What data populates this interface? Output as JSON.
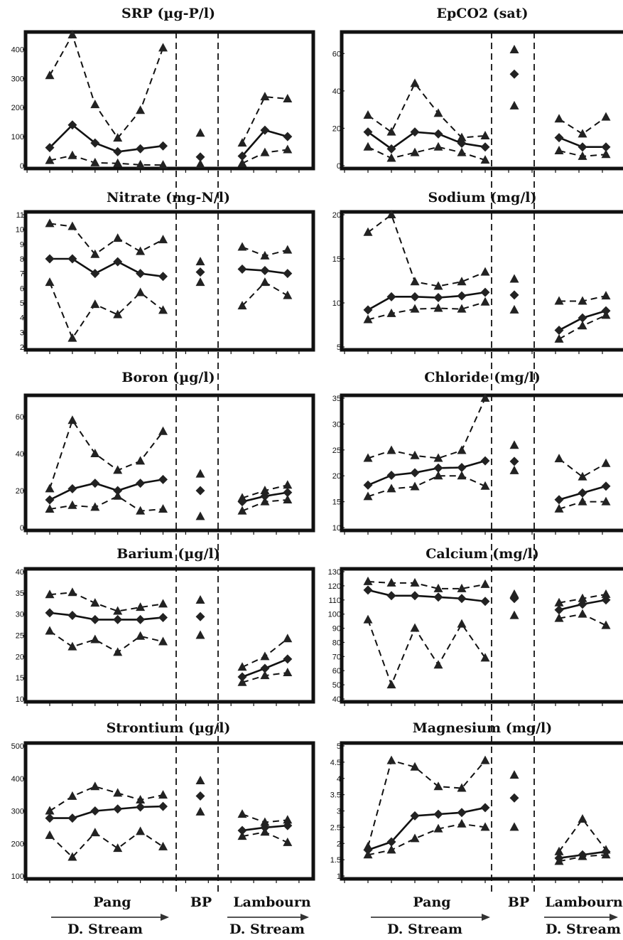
{
  "site_labels": {
    "left": "Pang",
    "middle": "BP",
    "right": "Lambourn",
    "downstream": "D. Stream"
  },
  "chart_data": [
    {
      "type": "line",
      "title": "SRP (µg-P/l)",
      "ylim": [
        0,
        450
      ],
      "yticks": [
        0,
        100,
        200,
        300,
        400
      ],
      "pang": {
        "mean": [
          62,
          140,
          78,
          48,
          58,
          68
        ],
        "max": [
          310,
          460,
          210,
          95,
          190,
          405
        ],
        "min": [
          18,
          35,
          10,
          8,
          3,
          2
        ]
      },
      "bp": {
        "mean": 30,
        "max": 112,
        "min": 5
      },
      "lambourn": {
        "mean": [
          33,
          122,
          100
        ],
        "max": [
          78,
          237,
          230
        ],
        "min": [
          8,
          45,
          55
        ]
      }
    },
    {
      "type": "line",
      "title": "EpCO2 (sat)",
      "ylim": [
        0,
        70
      ],
      "yticks": [
        0,
        20,
        40,
        60
      ],
      "pang": {
        "mean": [
          18,
          9,
          18,
          17,
          12,
          10
        ],
        "max": [
          27,
          18,
          44,
          28,
          15,
          16
        ],
        "min": [
          10,
          4,
          7,
          10,
          7,
          3
        ]
      },
      "bp": {
        "mean": 49,
        "max": 62,
        "min": 32
      },
      "lambourn": {
        "mean": [
          15,
          10,
          10
        ],
        "max": [
          25,
          17,
          26
        ],
        "min": [
          8,
          5,
          6
        ]
      }
    },
    {
      "type": "line",
      "title": "Nitrate (mg-N/l)",
      "ylim": [
        2,
        11
      ],
      "yticks": [
        2,
        3,
        4,
        5,
        6,
        7,
        8,
        9,
        10,
        11
      ],
      "pang": {
        "mean": [
          8,
          8,
          7,
          7.8,
          7,
          6.8
        ],
        "max": [
          10.4,
          10.2,
          8.3,
          9.4,
          8.5,
          9.3
        ],
        "min": [
          6.4,
          2.6,
          4.9,
          4.2,
          5.7,
          4.5
        ]
      },
      "bp": {
        "mean": 7.1,
        "max": 7.8,
        "min": 6.4
      },
      "lambourn": {
        "mean": [
          7.3,
          7.2,
          7.0
        ],
        "max": [
          8.8,
          8.2,
          8.6
        ],
        "min": [
          4.8,
          6.4,
          5.5
        ]
      }
    },
    {
      "type": "line",
      "title": "Sodium (mg/l)",
      "ylim": [
        5,
        20
      ],
      "yticks": [
        5,
        10,
        15,
        20
      ],
      "pang": {
        "mean": [
          9.2,
          10.7,
          10.7,
          10.6,
          10.8,
          11.2
        ],
        "max": [
          18,
          21,
          12.4,
          11.9,
          12.4,
          13.5
        ],
        "min": [
          8.1,
          8.8,
          9.3,
          9.4,
          9.3,
          10.1
        ]
      },
      "bp": {
        "mean": 10.9,
        "max": 12.7,
        "min": 9.2
      },
      "lambourn": {
        "mean": [
          6.9,
          8.3,
          9.1
        ],
        "max": [
          10.2,
          10.2,
          10.8
        ],
        "min": [
          5.9,
          7.4,
          8.6
        ]
      }
    },
    {
      "type": "line",
      "title": "Boron (µg/l)",
      "ylim": [
        0,
        70
      ],
      "yticks": [
        0,
        20,
        40,
        60
      ],
      "pang": {
        "mean": [
          15,
          21,
          24,
          20,
          24,
          26
        ],
        "max": [
          21,
          58,
          40,
          31,
          36,
          52
        ],
        "min": [
          10,
          12,
          11,
          17,
          9,
          10
        ]
      },
      "bp": {
        "mean": 20,
        "max": 29,
        "min": 6
      },
      "lambourn": {
        "mean": [
          14,
          17,
          19
        ],
        "max": [
          16,
          20,
          23
        ],
        "min": [
          9,
          14,
          15
        ]
      }
    },
    {
      "type": "line",
      "title": "Chloride (mg/l)",
      "ylim": [
        10,
        35
      ],
      "yticks": [
        10,
        15,
        20,
        25,
        30,
        35
      ],
      "pang": {
        "mean": [
          18.2,
          20.1,
          20.6,
          21.5,
          21.6,
          22.9
        ],
        "max": [
          23.4,
          24.9,
          23.9,
          23.4,
          24.9,
          35.5
        ],
        "min": [
          16.0,
          17.5,
          17.9,
          20.0,
          20.0,
          18.0
        ]
      },
      "bp": {
        "mean": 22.8,
        "max": 25.9,
        "min": 21.0
      },
      "lambourn": {
        "mean": [
          15.4,
          16.7,
          18.0
        ],
        "max": [
          23.3,
          19.8,
          22.4
        ],
        "min": [
          13.6,
          15.0,
          15.0
        ]
      }
    },
    {
      "type": "line",
      "title": "Barium (µg/l)",
      "ylim": [
        10,
        40
      ],
      "yticks": [
        10,
        15,
        20,
        25,
        30,
        35,
        40
      ],
      "pang": {
        "mean": [
          30.3,
          29.7,
          28.7,
          28.7,
          28.7,
          29.2
        ],
        "max": [
          34.6,
          35.1,
          32.6,
          30.7,
          31.6,
          32.4
        ],
        "min": [
          26.0,
          22.3,
          24.0,
          21.0,
          24.8,
          23.5
        ]
      },
      "bp": {
        "mean": 29.4,
        "max": 33.3,
        "min": 25.0
      },
      "lambourn": {
        "mean": [
          15.2,
          17.2,
          19.4
        ],
        "max": [
          17.5,
          20.0,
          24.2
        ],
        "min": [
          13.9,
          15.5,
          16.2
        ]
      }
    },
    {
      "type": "line",
      "title": "Calcium (mg/l)",
      "ylim": [
        40,
        130
      ],
      "yticks": [
        40,
        50,
        60,
        70,
        80,
        90,
        100,
        110,
        120,
        130
      ],
      "pang": {
        "mean": [
          117,
          113,
          113,
          112,
          111,
          109
        ],
        "max": [
          123,
          122,
          122,
          118,
          118,
          121
        ],
        "min": [
          96,
          50,
          90,
          64,
          93,
          69
        ]
      },
      "bp": {
        "mean": 111,
        "max": 114,
        "min": 99
      },
      "lambourn": {
        "mean": [
          103,
          107,
          110
        ],
        "max": [
          108,
          111,
          114
        ],
        "min": [
          97,
          100,
          92
        ]
      }
    },
    {
      "type": "line",
      "title": "Strontium (µg/l)",
      "ylim": [
        100,
        500
      ],
      "yticks": [
        100,
        200,
        300,
        400,
        500
      ],
      "pang": {
        "mean": [
          278,
          278,
          300,
          306,
          312,
          314
        ],
        "max": [
          300,
          345,
          375,
          355,
          334,
          349
        ],
        "min": [
          225,
          158,
          233,
          185,
          237,
          190
        ]
      },
      "bp": {
        "mean": 346,
        "max": 393,
        "min": 297
      },
      "lambourn": {
        "mean": [
          240,
          249,
          255
        ],
        "max": [
          290,
          265,
          272
        ],
        "min": [
          222,
          235,
          203
        ]
      }
    },
    {
      "type": "line",
      "title": "Magnesium (mg/l)",
      "ylim": [
        1,
        5
      ],
      "yticks": [
        1,
        1.5,
        2,
        2.5,
        3,
        3.5,
        4,
        4.5,
        5
      ],
      "pang": {
        "mean": [
          1.8,
          2.05,
          2.85,
          2.9,
          2.95,
          3.1
        ],
        "max": [
          1.9,
          4.55,
          4.35,
          3.75,
          3.7,
          4.55
        ],
        "min": [
          1.65,
          1.8,
          2.15,
          2.45,
          2.6,
          2.5
        ]
      },
      "bp": {
        "mean": 3.4,
        "max": 4.1,
        "min": 2.5
      },
      "lambourn": {
        "mean": [
          1.55,
          1.65,
          1.75
        ],
        "max": [
          1.75,
          2.75,
          1.8
        ],
        "min": [
          1.45,
          1.6,
          1.65
        ]
      }
    }
  ]
}
